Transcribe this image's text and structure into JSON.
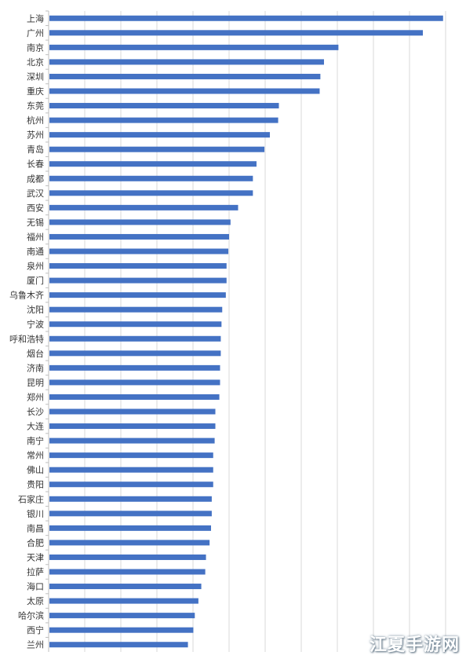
{
  "chart_data": {
    "type": "bar",
    "orientation": "horizontal",
    "title": "",
    "xlabel": "",
    "ylabel": "",
    "grid": true,
    "bar_color": "#4472c4",
    "xlim": [
      0,
      11
    ],
    "categories": [
      "上海",
      "广州",
      "南京",
      "北京",
      "深圳",
      "重庆",
      "东莞",
      "杭州",
      "苏州",
      "青岛",
      "长春",
      "成都",
      "武汉",
      "西安",
      "无锡",
      "福州",
      "南通",
      "泉州",
      "厦门",
      "乌鲁木齐",
      "沈阳",
      "宁波",
      "呼和浩特",
      "烟台",
      "济南",
      "昆明",
      "郑州",
      "长沙",
      "大连",
      "南宁",
      "常州",
      "佛山",
      "贵阳",
      "石家庄",
      "银川",
      "南昌",
      "合肥",
      "天津",
      "拉萨",
      "海口",
      "太原",
      "哈尔滨",
      "西宁",
      "兰州"
    ],
    "values": [
      10.93,
      10.37,
      8.03,
      7.63,
      7.53,
      7.51,
      6.38,
      6.36,
      6.13,
      5.98,
      5.76,
      5.66,
      5.66,
      5.25,
      5.04,
      5.0,
      4.98,
      4.93,
      4.93,
      4.91,
      4.81,
      4.79,
      4.77,
      4.77,
      4.75,
      4.75,
      4.73,
      4.62,
      4.62,
      4.6,
      4.56,
      4.56,
      4.56,
      4.52,
      4.52,
      4.5,
      4.46,
      4.36,
      4.34,
      4.23,
      4.15,
      4.05,
      4.01,
      3.86
    ]
  },
  "watermark": {
    "text": "江夏手游网"
  }
}
